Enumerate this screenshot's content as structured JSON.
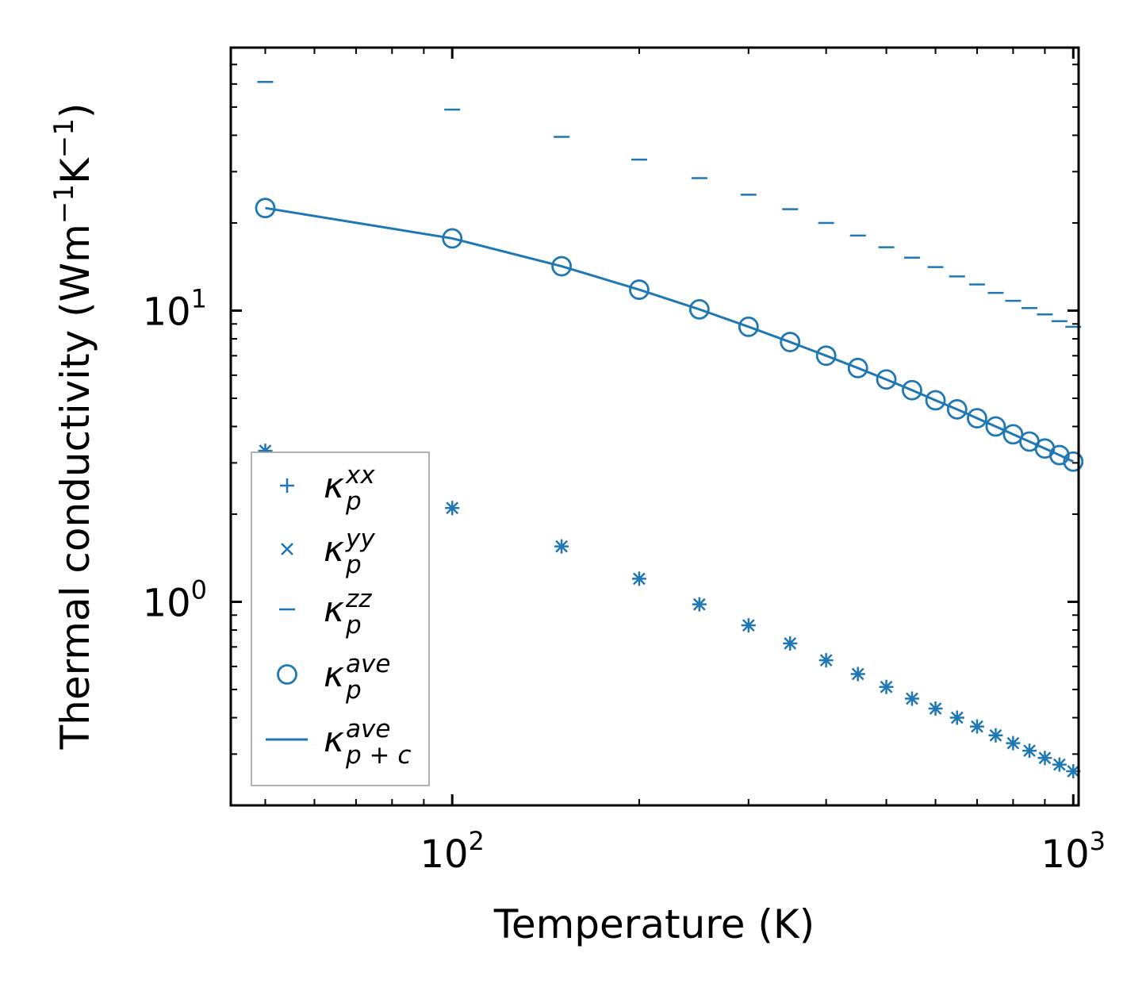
{
  "chart_data": {
    "type": "scatter",
    "title": "",
    "xlabel": "Temperature (K)",
    "ylabel_main": "Thermal conductivity (Wm",
    "ylabel_mid": "K",
    "ylabel_end": ")",
    "ylabel_sup": "−1",
    "xscale": "log",
    "yscale": "log",
    "xlim": [
      44,
      1020
    ],
    "ylim": [
      0.2,
      80
    ],
    "x_ticks": [
      {
        "value": 100,
        "base": "10",
        "exp": "2"
      },
      {
        "value": 1000,
        "base": "10",
        "exp": "3"
      }
    ],
    "y_ticks": [
      {
        "value": 1,
        "base": "10",
        "exp": "0"
      },
      {
        "value": 10,
        "base": "10",
        "exp": "1"
      }
    ],
    "color": "#1f77b4",
    "x": [
      50,
      100,
      150,
      200,
      250,
      300,
      350,
      400,
      450,
      500,
      550,
      600,
      650,
      700,
      750,
      800,
      850,
      900,
      950,
      1000
    ],
    "series": [
      {
        "name": "kappa_p_xx",
        "marker": "plus",
        "values": [
          3.3,
          2.1,
          1.55,
          1.2,
          0.98,
          0.83,
          0.72,
          0.63,
          0.565,
          0.51,
          0.465,
          0.43,
          0.4,
          0.373,
          0.348,
          0.327,
          0.308,
          0.291,
          0.276,
          0.262
        ]
      },
      {
        "name": "kappa_p_yy",
        "marker": "x",
        "values": [
          3.3,
          2.1,
          1.55,
          1.2,
          0.98,
          0.83,
          0.72,
          0.63,
          0.565,
          0.51,
          0.465,
          0.43,
          0.4,
          0.373,
          0.348,
          0.327,
          0.308,
          0.291,
          0.276,
          0.262
        ]
      },
      {
        "name": "kappa_p_zz",
        "marker": "hline",
        "values": [
          61,
          49,
          39.5,
          33,
          28.5,
          25,
          22.3,
          20,
          18.1,
          16.5,
          15.2,
          14.1,
          13.1,
          12.3,
          11.5,
          10.8,
          10.2,
          9.7,
          9.2,
          8.8
        ]
      },
      {
        "name": "kappa_p_ave",
        "marker": "circle",
        "values": [
          22.5,
          17.7,
          14.2,
          11.8,
          10.1,
          8.8,
          7.8,
          7.0,
          6.35,
          5.8,
          5.33,
          4.92,
          4.58,
          4.27,
          4.0,
          3.76,
          3.55,
          3.36,
          3.19,
          3.03
        ]
      },
      {
        "name": "kappa_p+c_ave",
        "marker": "line",
        "values": [
          22.5,
          17.7,
          14.2,
          11.8,
          10.1,
          8.8,
          7.8,
          7.0,
          6.35,
          5.8,
          5.33,
          4.92,
          4.58,
          4.27,
          4.0,
          3.76,
          3.55,
          3.36,
          3.19,
          3.03
        ]
      }
    ],
    "legend": {
      "placement": "lower-left",
      "entries": [
        {
          "symbol": "plus",
          "base": "κ",
          "sup": "xx",
          "sub": "p"
        },
        {
          "symbol": "x",
          "base": "κ",
          "sup": "yy",
          "sub": "p"
        },
        {
          "symbol": "hline",
          "base": "κ",
          "sup": "zz",
          "sub": "p"
        },
        {
          "symbol": "circle",
          "base": "κ",
          "sup": "ave",
          "sub": "p"
        },
        {
          "symbol": "line",
          "base": "κ",
          "sup": "ave",
          "sub": "p + c"
        }
      ]
    }
  }
}
